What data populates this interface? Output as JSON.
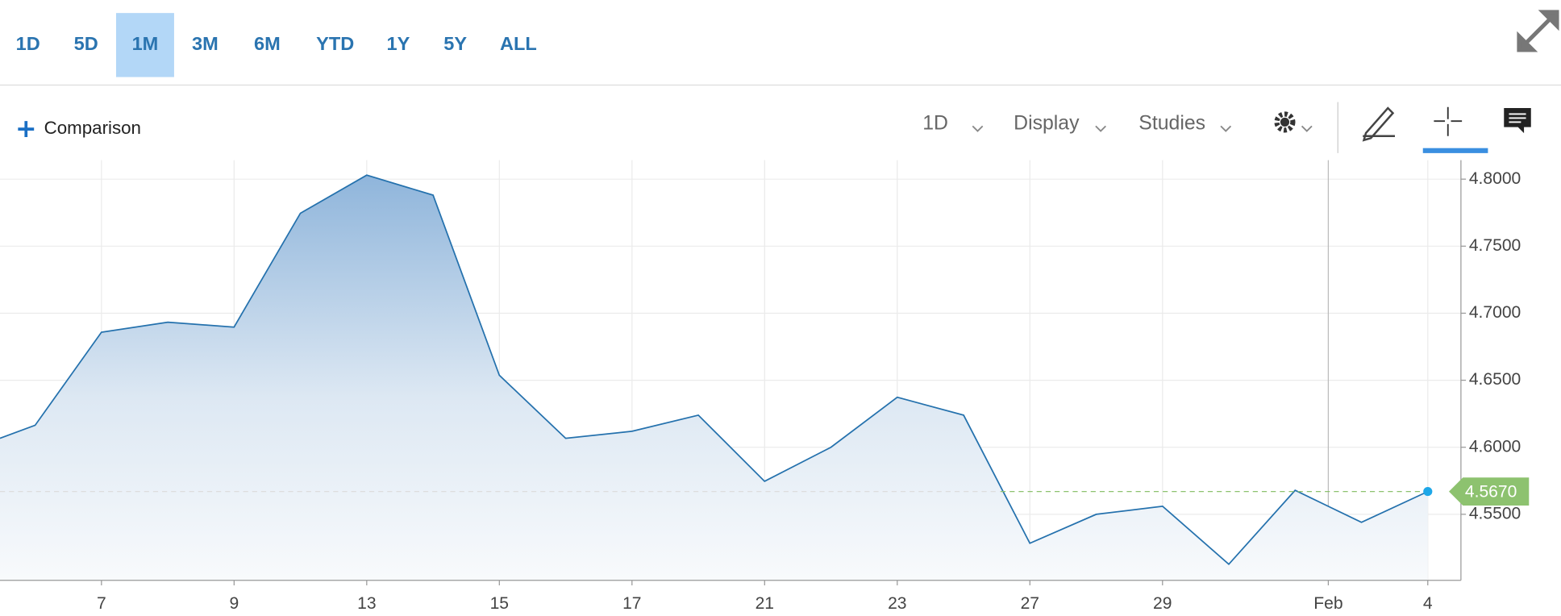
{
  "toolbar": {
    "ranges": [
      "1D",
      "5D",
      "1M",
      "3M",
      "6M",
      "YTD",
      "1Y",
      "5Y",
      "ALL"
    ],
    "selected_range": "1M",
    "comparison": "Comparison",
    "interval": "1D",
    "display": "Display",
    "studies": "Studies"
  },
  "chart_data": {
    "type": "area",
    "color": "#2471ad",
    "x": [
      -0.53,
      0,
      1,
      2,
      3,
      4,
      5,
      6,
      7,
      8,
      9,
      10,
      11,
      12,
      13,
      14,
      15,
      16,
      17,
      18,
      19,
      20,
      21
    ],
    "values": [
      4.6067,
      4.6164,
      4.6858,
      4.6933,
      4.6896,
      4.7746,
      4.803,
      4.7881,
      4.6537,
      4.6067,
      4.6119,
      4.6239,
      4.5746,
      4.6,
      4.6373,
      4.6239,
      4.5284,
      4.55,
      4.556,
      4.5127,
      4.5679,
      4.544,
      4.567
    ],
    "xlim": [
      -0.53,
      21.5
    ],
    "xticks": [
      {
        "value": 1,
        "label": "7"
      },
      {
        "value": 3,
        "label": "9"
      },
      {
        "value": 5,
        "label": "13"
      },
      {
        "value": 7,
        "label": "15"
      },
      {
        "value": 9,
        "label": "17"
      },
      {
        "value": 11,
        "label": "21"
      },
      {
        "value": 13,
        "label": "23"
      },
      {
        "value": 15,
        "label": "27"
      },
      {
        "value": 17,
        "label": "29"
      },
      {
        "value": 19.5,
        "label": "Feb"
      },
      {
        "value": 21,
        "label": "4"
      }
    ],
    "ylim": [
      4.5007,
      4.8142
    ],
    "yticks": [
      {
        "value": 4.55,
        "label": "4.5500"
      },
      {
        "value": 4.6,
        "label": "4.6000"
      },
      {
        "value": 4.65,
        "label": "4.6500"
      },
      {
        "value": 4.7,
        "label": "4.7000"
      },
      {
        "value": 4.75,
        "label": "4.7500"
      },
      {
        "value": 4.8,
        "label": "4.8000"
      }
    ],
    "last_value": 4.567,
    "last_value_label": "4.5670",
    "last_color": "#8dc26f",
    "grid": true
  }
}
